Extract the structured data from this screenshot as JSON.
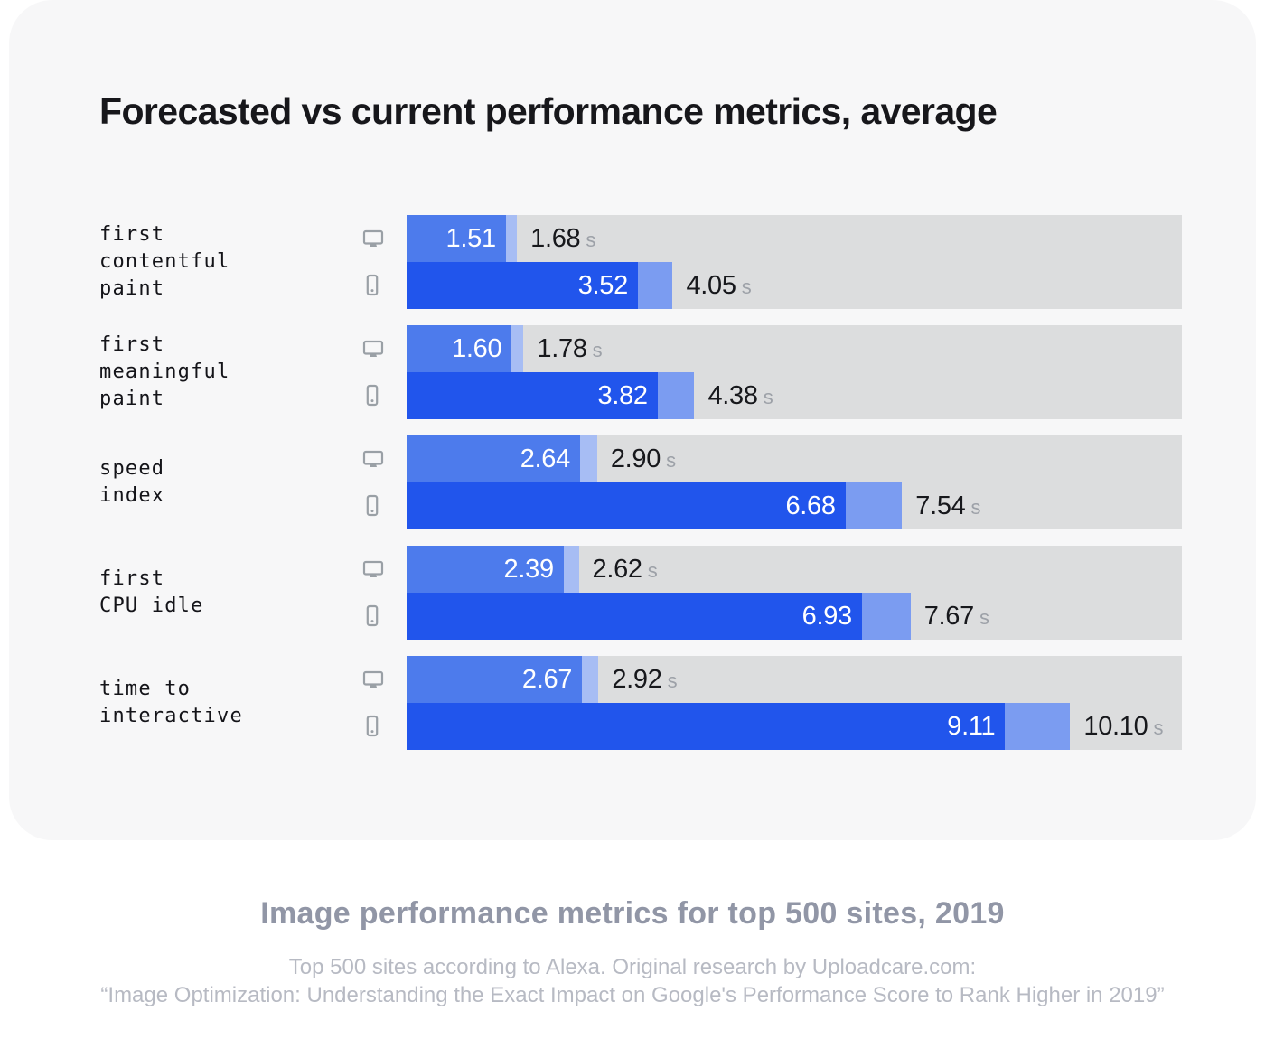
{
  "colors": {
    "card_background": "#f7f7f8",
    "track": "#dcddde",
    "desktop_forecasted": "#4d7bec",
    "desktop_delta": "#a7bdf4",
    "mobile_forecasted": "#2155ec",
    "mobile_delta": "#7b9cf1",
    "icon_gray": "#9aa0a6",
    "value_dark": "#17181c",
    "unit_gray": "#9da1a8"
  },
  "chart_data": {
    "type": "bar",
    "orientation": "horizontal",
    "title": "Forecasted vs current performance metrics, average",
    "unit": "s",
    "axis_max_seconds": 11.8,
    "legend": "none",
    "devices": [
      "desktop",
      "mobile"
    ],
    "rows": [
      {
        "metric_lines": [
          "first",
          "contentful",
          "paint"
        ],
        "desktop": {
          "forecasted": 1.51,
          "current": 1.68
        },
        "mobile": {
          "forecasted": 3.52,
          "current": 4.05
        }
      },
      {
        "metric_lines": [
          "first",
          "meaningful",
          "paint"
        ],
        "desktop": {
          "forecasted": 1.6,
          "current": 1.78
        },
        "mobile": {
          "forecasted": 3.82,
          "current": 4.38
        }
      },
      {
        "metric_lines": [
          "speed",
          "index"
        ],
        "desktop": {
          "forecasted": 2.64,
          "current": 2.9
        },
        "mobile": {
          "forecasted": 6.68,
          "current": 7.54
        }
      },
      {
        "metric_lines": [
          "first",
          "CPU idle"
        ],
        "desktop": {
          "forecasted": 2.39,
          "current": 2.62
        },
        "mobile": {
          "forecasted": 6.93,
          "current": 7.67
        }
      },
      {
        "metric_lines": [
          "time to",
          "interactive"
        ],
        "desktop": {
          "forecasted": 2.67,
          "current": 2.92
        },
        "mobile": {
          "forecasted": 9.11,
          "current": 10.1
        }
      }
    ]
  },
  "footer": {
    "title": "Image performance metrics for top 500 sites, 2019",
    "line1": "Top 500 sites according to Alexa. Original research by Uploadcare.com:",
    "line2": "“Image Optimization: Understanding the Exact Impact on Google's Performance Score to Rank Higher in 2019”"
  }
}
